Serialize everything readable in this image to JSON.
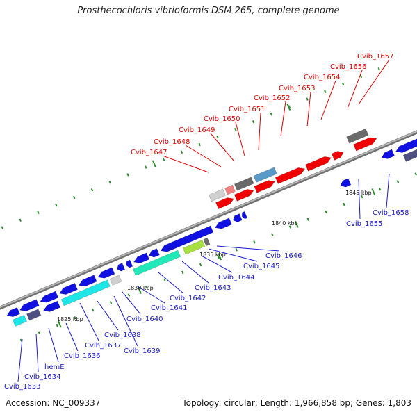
{
  "title": "Prosthecochloris vibrioformis DSM 265, complete genome",
  "footer": {
    "accession": "Accession: NC_009337",
    "topology": "Topology: circular; Length: 1,966,858 bp; Genes: 1,803"
  },
  "colors": {
    "backbone": "#9a9a9a",
    "tick": "#2e8b2e",
    "forward_label": "#e00000",
    "reverse_label": "#1a1acc",
    "gene_blue": "#1010e0",
    "gene_red": "#f00000",
    "gene_cyan": "#1fe6e6",
    "gene_aqua": "#20e8b8",
    "gene_lightgray": "#d0d0d0",
    "gene_darkgray": "#6a6a6a",
    "gene_lime": "#a8e040",
    "gene_olive": "#80a030",
    "gene_steel": "#5a9ac8",
    "gene_slate": "#505080",
    "gene_pink": "#f08080",
    "gene_teal": "#30c0b0"
  },
  "kbp_labels": [
    "1825 kbp",
    "1830 kbp",
    "1835 kbp",
    "1840 kbp",
    "1845 kbp"
  ],
  "forward_labels": [
    "Cvib_1647",
    "Cvib_1648",
    "Cvib_1649",
    "Cvib_1650",
    "Cvib_1651",
    "Cvib_1652",
    "Cvib_1653",
    "Cvib_1654",
    "Cvib_1656",
    "Cvib_1657"
  ],
  "reverse_labels": [
    "Cvib_1633",
    "Cvib_1634",
    "hemE",
    "Cvib_1636",
    "Cvib_1637",
    "Cvib_1638",
    "Cvib_1639",
    "Cvib_1640",
    "Cvib_1641",
    "Cvib_1642",
    "Cvib_1643",
    "Cvib_1644",
    "Cvib_1645",
    "Cvib_1646",
    "Cvib_1655",
    "Cvib_1658"
  ]
}
